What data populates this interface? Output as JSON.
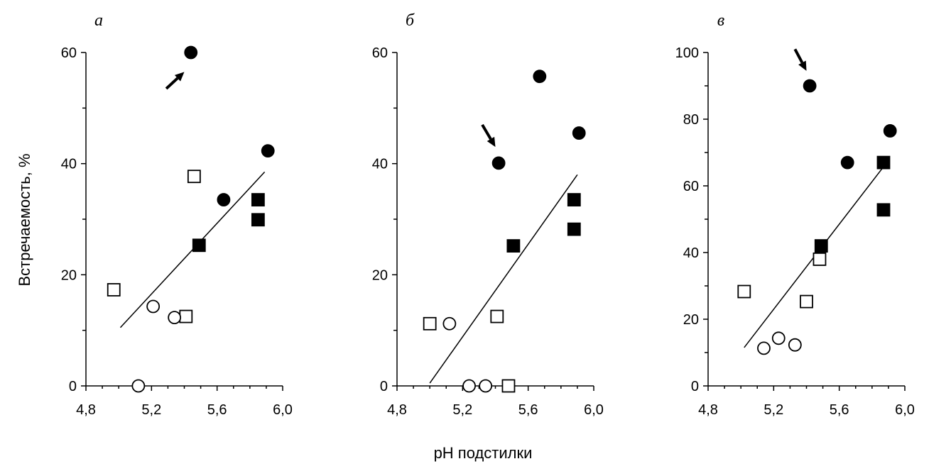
{
  "xlabel": "pH подстилки",
  "ylabel": "Встречаемость, %",
  "chart_data": [
    {
      "type": "scatter",
      "panel": "а",
      "xlim": [
        4.8,
        6.0
      ],
      "ylim": [
        0,
        60
      ],
      "xticks": [
        "4,8",
        "5,2",
        "5,6",
        "6,0"
      ],
      "xtick_values": [
        4.8,
        5.2,
        5.6,
        6.0
      ],
      "yticks": [
        "0",
        "20",
        "40",
        "60"
      ],
      "ytick_values": [
        0,
        20,
        40,
        60
      ],
      "trendline": [
        [
          5.01,
          10.5
        ],
        [
          5.89,
          38.5
        ]
      ],
      "arrow": {
        "from": [
          5.29,
          53.5
        ],
        "to": [
          5.4,
          56.5
        ]
      },
      "points": [
        {
          "x": 5.44,
          "y": 60.0,
          "marker": "filled-circle"
        },
        {
          "x": 5.64,
          "y": 33.5,
          "marker": "filled-circle"
        },
        {
          "x": 5.91,
          "y": 42.3,
          "marker": "filled-circle"
        },
        {
          "x": 5.49,
          "y": 25.3,
          "marker": "filled-square"
        },
        {
          "x": 5.85,
          "y": 33.5,
          "marker": "filled-square"
        },
        {
          "x": 5.85,
          "y": 29.9,
          "marker": "filled-square"
        },
        {
          "x": 4.97,
          "y": 17.3,
          "marker": "open-square"
        },
        {
          "x": 5.41,
          "y": 12.5,
          "marker": "open-square"
        },
        {
          "x": 5.46,
          "y": 37.7,
          "marker": "open-square"
        },
        {
          "x": 5.12,
          "y": 0.0,
          "marker": "open-circle"
        },
        {
          "x": 5.21,
          "y": 14.3,
          "marker": "open-circle"
        },
        {
          "x": 5.34,
          "y": 12.3,
          "marker": "open-circle"
        }
      ]
    },
    {
      "type": "scatter",
      "panel": "б",
      "xlim": [
        4.8,
        6.0
      ],
      "ylim": [
        0,
        60
      ],
      "xticks": [
        "4,8",
        "5,2",
        "5,6",
        "6,0"
      ],
      "xtick_values": [
        4.8,
        5.2,
        5.6,
        6.0
      ],
      "yticks": [
        "0",
        "20",
        "40",
        "60"
      ],
      "ytick_values": [
        0,
        20,
        40,
        60
      ],
      "trendline": [
        [
          5.0,
          0.5
        ],
        [
          5.9,
          38.0
        ]
      ],
      "arrow": {
        "from": [
          5.32,
          47.0
        ],
        "to": [
          5.4,
          43.0
        ]
      },
      "points": [
        {
          "x": 5.42,
          "y": 40.1,
          "marker": "filled-circle"
        },
        {
          "x": 5.67,
          "y": 55.7,
          "marker": "filled-circle"
        },
        {
          "x": 5.91,
          "y": 45.5,
          "marker": "filled-circle"
        },
        {
          "x": 5.51,
          "y": 25.2,
          "marker": "filled-square"
        },
        {
          "x": 5.88,
          "y": 33.5,
          "marker": "filled-square"
        },
        {
          "x": 5.88,
          "y": 28.2,
          "marker": "filled-square"
        },
        {
          "x": 5.0,
          "y": 11.2,
          "marker": "open-square"
        },
        {
          "x": 5.41,
          "y": 12.5,
          "marker": "open-square"
        },
        {
          "x": 5.48,
          "y": 0.0,
          "marker": "open-square"
        },
        {
          "x": 5.12,
          "y": 11.2,
          "marker": "open-circle"
        },
        {
          "x": 5.24,
          "y": 0.0,
          "marker": "open-circle"
        },
        {
          "x": 5.34,
          "y": 0.0,
          "marker": "open-circle"
        }
      ]
    },
    {
      "type": "scatter",
      "panel": "в",
      "xlim": [
        4.8,
        6.0
      ],
      "ylim": [
        0,
        100
      ],
      "xticks": [
        "4,8",
        "5,2",
        "5,6",
        "6,0"
      ],
      "xtick_values": [
        4.8,
        5.2,
        5.6,
        6.0
      ],
      "yticks": [
        "0",
        "20",
        "40",
        "60",
        "80",
        "100"
      ],
      "ytick_values": [
        0,
        20,
        40,
        60,
        80,
        100
      ],
      "trendline": [
        [
          5.02,
          11.5
        ],
        [
          5.89,
          67.0
        ]
      ],
      "arrow": {
        "from": [
          5.33,
          101.0
        ],
        "to": [
          5.4,
          94.5
        ]
      },
      "points": [
        {
          "x": 5.42,
          "y": 90.0,
          "marker": "filled-circle"
        },
        {
          "x": 5.65,
          "y": 67.0,
          "marker": "filled-circle"
        },
        {
          "x": 5.91,
          "y": 76.5,
          "marker": "filled-circle"
        },
        {
          "x": 5.49,
          "y": 42.0,
          "marker": "filled-square"
        },
        {
          "x": 5.87,
          "y": 67.0,
          "marker": "filled-square"
        },
        {
          "x": 5.87,
          "y": 52.8,
          "marker": "filled-square"
        },
        {
          "x": 5.02,
          "y": 28.3,
          "marker": "open-square"
        },
        {
          "x": 5.4,
          "y": 25.3,
          "marker": "open-square"
        },
        {
          "x": 5.48,
          "y": 38.0,
          "marker": "open-square"
        },
        {
          "x": 5.14,
          "y": 11.3,
          "marker": "open-circle"
        },
        {
          "x": 5.23,
          "y": 14.3,
          "marker": "open-circle"
        },
        {
          "x": 5.33,
          "y": 12.3,
          "marker": "open-circle"
        }
      ]
    }
  ]
}
